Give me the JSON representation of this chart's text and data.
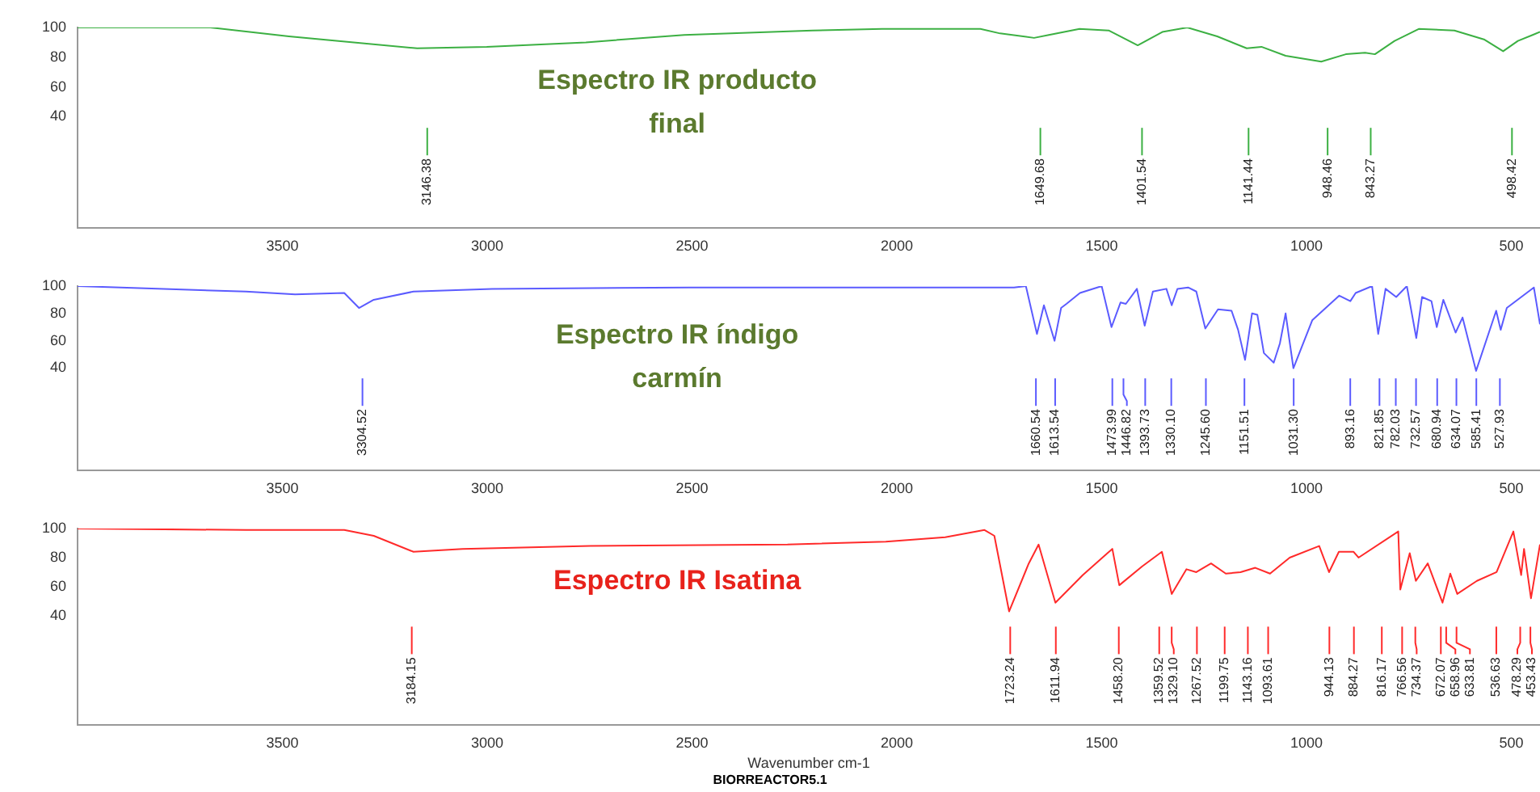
{
  "chart_data": [
    {
      "type": "line",
      "title": "Espectro IR producto final",
      "xlim": [
        4000,
        430
      ],
      "xticks": [
        3500,
        3000,
        2500,
        2000,
        1500,
        1000,
        500
      ],
      "ylim": [
        -35,
        100
      ],
      "yticks": [
        40,
        60,
        80,
        100
      ],
      "series": [
        {
          "color": "#3cb043",
          "x": [
            4000,
            3676,
            3484,
            3171,
            3001,
            2759,
            2519,
            2206,
            2036,
            1796,
            1748,
            1665,
            1629,
            1554,
            1483,
            1412,
            1352,
            1291,
            1218,
            1146,
            1110,
            1051,
            964,
            904,
            857,
            833,
            785,
            726,
            639,
            567,
            520,
            484,
            448,
            430
          ],
          "values": [
            100,
            100,
            94,
            86,
            87,
            90,
            95,
            98,
            99,
            99,
            96,
            93,
            95,
            99,
            98,
            88,
            97,
            100,
            94,
            86,
            87,
            81,
            77,
            82,
            83,
            82,
            91,
            99,
            98,
            92,
            84,
            91,
            95,
            97
          ]
        }
      ],
      "ref_lines": [
        {
          "axis": "x",
          "value": 3146.38,
          "label": "3146.38",
          "color": "#3cb043"
        },
        {
          "axis": "x",
          "value": 1649.68,
          "label": "1649.68",
          "color": "#3cb043"
        },
        {
          "axis": "x",
          "value": 1401.54,
          "label": "1401.54",
          "color": "#3cb043"
        },
        {
          "axis": "x",
          "value": 1141.44,
          "label": "1141.44",
          "color": "#3cb043"
        },
        {
          "axis": "x",
          "value": 948.46,
          "label": "948.46",
          "color": "#3cb043"
        },
        {
          "axis": "x",
          "value": 843.27,
          "label": "843.27",
          "color": "#3cb043"
        },
        {
          "axis": "x",
          "value": 498.42,
          "label": "498.42",
          "color": "#3cb043"
        }
      ]
    },
    {
      "type": "line",
      "title": "Espectro IR índigo carmín",
      "xlim": [
        4000,
        430
      ],
      "xticks": [
        3500,
        3000,
        2500,
        2000,
        1500,
        1000,
        500
      ],
      "ylim": [
        -35,
        100
      ],
      "yticks": [
        40,
        60,
        80,
        100
      ],
      "series": [
        {
          "color": "#5b5bff",
          "x": [
            4000,
            3589,
            3469,
            3349,
            3313,
            3277,
            3180,
            2988,
            2507,
            2027,
            1714,
            1685,
            1658,
            1641,
            1615,
            1599,
            1586,
            1553,
            1500,
            1476,
            1454,
            1441,
            1414,
            1395,
            1375,
            1342,
            1329,
            1315,
            1289,
            1269,
            1247,
            1216,
            1183,
            1167,
            1150,
            1133,
            1120,
            1104,
            1080,
            1065,
            1051,
            1032,
            986,
            920,
            893,
            880,
            840,
            825,
            807,
            781,
            755,
            732,
            718,
            695,
            682,
            666,
            636,
            619,
            586,
            537,
            526,
            511,
            445,
            430
          ],
          "values": [
            100,
            96,
            94,
            95,
            84,
            90,
            96,
            98,
            99,
            99,
            99,
            100,
            65,
            86,
            60,
            84,
            87,
            95,
            100,
            70,
            88,
            87,
            98,
            71,
            96,
            98,
            86,
            98,
            99,
            96,
            69,
            83,
            82,
            68,
            46,
            80,
            79,
            51,
            44,
            58,
            80,
            40,
            75,
            93,
            89,
            95,
            100,
            65,
            98,
            92,
            100,
            62,
            92,
            89,
            70,
            90,
            66,
            77,
            38,
            82,
            68,
            84,
            99,
            72
          ]
        }
      ],
      "ref_lines": [
        {
          "axis": "x",
          "value": 3304.52,
          "label": "3304.52",
          "color": "#5b5bff"
        },
        {
          "axis": "x",
          "value": 1660.54,
          "label": "1660.54",
          "color": "#5b5bff"
        },
        {
          "axis": "x",
          "value": 1613.54,
          "label": "1613.54",
          "color": "#5b5bff"
        },
        {
          "axis": "x",
          "value": 1473.99,
          "label": "1473.99",
          "color": "#5b5bff"
        },
        {
          "axis": "x",
          "value": 1446.82,
          "label": "1446.82",
          "color": "#5b5bff"
        },
        {
          "axis": "x",
          "value": 1393.73,
          "label": "1393.73",
          "color": "#5b5bff"
        },
        {
          "axis": "x",
          "value": 1330.1,
          "label": "1330.10",
          "color": "#5b5bff"
        },
        {
          "axis": "x",
          "value": 1245.6,
          "label": "1245.60",
          "color": "#5b5bff"
        },
        {
          "axis": "x",
          "value": 1151.51,
          "label": "1151.51",
          "color": "#5b5bff"
        },
        {
          "axis": "x",
          "value": 1031.3,
          "label": "1031.30",
          "color": "#5b5bff"
        },
        {
          "axis": "x",
          "value": 893.16,
          "label": "893.16",
          "color": "#5b5bff"
        },
        {
          "axis": "x",
          "value": 821.85,
          "label": "821.85",
          "color": "#5b5bff"
        },
        {
          "axis": "x",
          "value": 782.03,
          "label": "782.03",
          "color": "#5b5bff"
        },
        {
          "axis": "x",
          "value": 732.57,
          "label": "732.57",
          "color": "#5b5bff"
        },
        {
          "axis": "x",
          "value": 680.94,
          "label": "680.94",
          "color": "#5b5bff"
        },
        {
          "axis": "x",
          "value": 634.07,
          "label": "634.07",
          "color": "#5b5bff"
        },
        {
          "axis": "x",
          "value": 585.41,
          "label": "585.41",
          "color": "#5b5bff"
        },
        {
          "axis": "x",
          "value": 527.93,
          "label": "527.93",
          "color": "#5b5bff"
        }
      ]
    },
    {
      "type": "line",
      "title": "Espectro IR Isatina",
      "xlabel": "Wavenumber cm-1",
      "xlim": [
        4000,
        430
      ],
      "xticks": [
        3500,
        3000,
        2500,
        2000,
        1500,
        1000,
        500
      ],
      "ylim": [
        -35,
        100
      ],
      "yticks": [
        40,
        60,
        80,
        100
      ],
      "series": [
        {
          "color": "#ff2a2a",
          "x": [
            4000,
            3589,
            3349,
            3277,
            3180,
            3060,
            2748,
            2267,
            2027,
            1882,
            1786,
            1762,
            1726,
            1678,
            1654,
            1613,
            1546,
            1486,
            1474,
            1457,
            1401,
            1353,
            1329,
            1293,
            1269,
            1233,
            1197,
            1161,
            1125,
            1089,
            1041,
            969,
            945,
            921,
            885,
            873,
            776,
            771,
            748,
            733,
            704,
            668,
            649,
            632,
            584,
            536,
            495,
            476,
            469,
            452,
            430
          ],
          "values": [
            100,
            99,
            99,
            95,
            84,
            86,
            88,
            89,
            91,
            94,
            99,
            95,
            43,
            76,
            89,
            49,
            68,
            83,
            86,
            61,
            74,
            84,
            55,
            72,
            70,
            76,
            69,
            70,
            73,
            69,
            80,
            88,
            70,
            84,
            84,
            80,
            98,
            58,
            83,
            64,
            76,
            49,
            69,
            55,
            64,
            70,
            98,
            68,
            86,
            52,
            89
          ]
        }
      ],
      "ref_lines": [
        {
          "axis": "x",
          "value": 3184.15,
          "label": "3184.15",
          "color": "#ff2a2a"
        },
        {
          "axis": "x",
          "value": 1723.24,
          "label": "1723.24",
          "color": "#ff2a2a"
        },
        {
          "axis": "x",
          "value": 1611.94,
          "label": "1611.94",
          "color": "#ff2a2a"
        },
        {
          "axis": "x",
          "value": 1458.2,
          "label": "1458.20",
          "color": "#ff2a2a"
        },
        {
          "axis": "x",
          "value": 1359.52,
          "label": "1359.52",
          "color": "#ff2a2a"
        },
        {
          "axis": "x",
          "value": 1329.1,
          "label": "1329.10",
          "color": "#ff2a2a"
        },
        {
          "axis": "x",
          "value": 1267.52,
          "label": "1267.52",
          "color": "#ff2a2a"
        },
        {
          "axis": "x",
          "value": 1199.75,
          "label": "1199.75",
          "color": "#ff2a2a"
        },
        {
          "axis": "x",
          "value": 1143.16,
          "label": "1143.16",
          "color": "#ff2a2a"
        },
        {
          "axis": "x",
          "value": 1093.61,
          "label": "1093.61",
          "color": "#ff2a2a"
        },
        {
          "axis": "x",
          "value": 944.13,
          "label": "944.13",
          "color": "#ff2a2a"
        },
        {
          "axis": "x",
          "value": 884.27,
          "label": "884.27",
          "color": "#ff2a2a"
        },
        {
          "axis": "x",
          "value": 816.17,
          "label": "816.17",
          "color": "#ff2a2a"
        },
        {
          "axis": "x",
          "value": 766.56,
          "label": "766.56",
          "color": "#ff2a2a"
        },
        {
          "axis": "x",
          "value": 734.37,
          "label": "734.37",
          "color": "#ff2a2a"
        },
        {
          "axis": "x",
          "value": 672.07,
          "label": "672.07",
          "color": "#ff2a2a"
        },
        {
          "axis": "x",
          "value": 658.96,
          "label": "658.96",
          "color": "#ff2a2a"
        },
        {
          "axis": "x",
          "value": 633.81,
          "label": "633.81",
          "color": "#ff2a2a"
        },
        {
          "axis": "x",
          "value": 536.63,
          "label": "536.63",
          "color": "#ff2a2a"
        },
        {
          "axis": "x",
          "value": 478.29,
          "label": "478.29",
          "color": "#ff2a2a"
        },
        {
          "axis": "x",
          "value": 453.43,
          "label": "453.43",
          "color": "#ff2a2a"
        }
      ],
      "annotations": [
        "BIORREACTOR5.1"
      ]
    }
  ]
}
